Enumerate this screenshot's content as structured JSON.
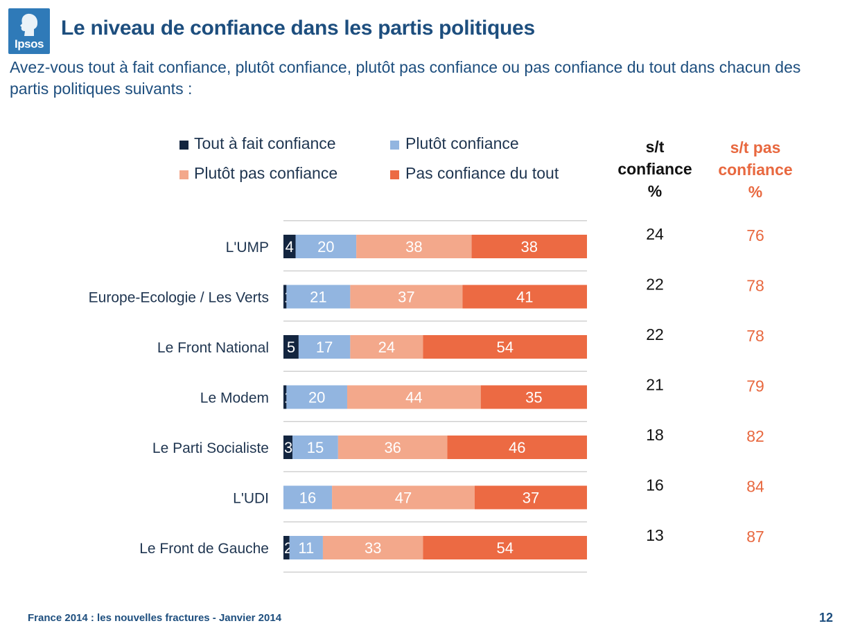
{
  "logo": {
    "text": "Ipsos"
  },
  "title": "Le niveau de confiance dans les partis politiques",
  "subtitle": "Avez-vous tout à fait confiance, plutôt confiance, plutôt pas confiance ou pas confiance du tout dans chacun des partis politiques suivants :",
  "columns": {
    "confidence": [
      "s/t",
      "confiance",
      "%"
    ],
    "no_confidence": [
      "s/t pas",
      "confiance",
      "%"
    ]
  },
  "colors": {
    "tout_a_fait": "#13253f",
    "plutot": "#92b5e0",
    "plutot_pas": "#f3a88b",
    "pas_du_tout": "#ec6a43",
    "text_dark": "#1f3550",
    "accent_orange": "#e8683f",
    "gridline": "#c8c8c8"
  },
  "chart_data": {
    "type": "bar",
    "orientation": "horizontal",
    "stacked": true,
    "categories": [
      "L'UMP",
      "Europe-Ecologie / Les Verts",
      "Le Front National",
      "Le Modem",
      "Le Parti Socialiste",
      "L'UDI",
      "Le Front de Gauche"
    ],
    "series": [
      {
        "name": "Tout à fait confiance",
        "values": [
          4,
          1,
          5,
          1,
          3,
          0,
          2
        ],
        "labels": [
          "4",
          "1",
          "5",
          "1",
          "3",
          "",
          "2"
        ]
      },
      {
        "name": "Plutôt confiance",
        "values": [
          20,
          21,
          17,
          20,
          15,
          16,
          11
        ]
      },
      {
        "name": "Plutôt pas confiance",
        "values": [
          38,
          37,
          24,
          44,
          36,
          47,
          33
        ]
      },
      {
        "name": "Pas confiance du tout",
        "values": [
          38,
          41,
          54,
          35,
          46,
          37,
          54
        ]
      }
    ],
    "totals_confiance": [
      24,
      22,
      22,
      21,
      18,
      16,
      13
    ],
    "totals_pas_confiance": [
      76,
      78,
      78,
      79,
      82,
      84,
      87
    ],
    "xlim": [
      0,
      100
    ],
    "legend_position": "top"
  },
  "footer": {
    "left": "France 2014 : les nouvelles fractures - Janvier 2014",
    "page": "12"
  }
}
